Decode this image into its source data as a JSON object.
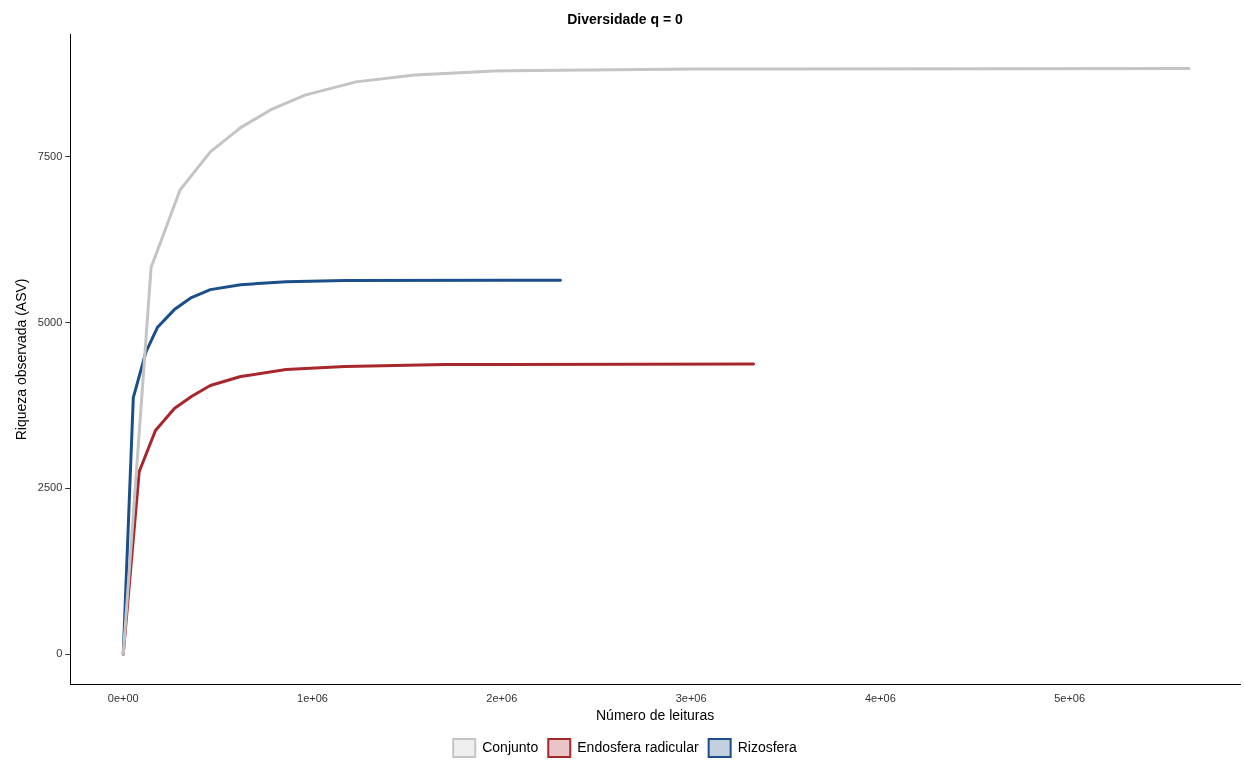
{
  "chart_data": {
    "type": "line",
    "title": "Diversidade q = 0",
    "xlabel": "Número de leituras",
    "ylabel": "Riqueza observada (ASV)",
    "xlim": [
      -280000,
      5900000
    ],
    "ylim": [
      -450,
      9340
    ],
    "xticks": [
      {
        "value": 0,
        "label": "0e+00"
      },
      {
        "value": 1000000,
        "label": "1e+06"
      },
      {
        "value": 2000000,
        "label": "2e+06"
      },
      {
        "value": 3000000,
        "label": "3e+06"
      },
      {
        "value": 4000000,
        "label": "4e+06"
      },
      {
        "value": 5000000,
        "label": "5e+06"
      }
    ],
    "yticks": [
      0,
      2500,
      5000,
      7500
    ],
    "grid": false,
    "legend": "bottom",
    "marker": "none",
    "line_style": "solid",
    "series": [
      {
        "name": "Conjunto",
        "color": "#c4c4c4",
        "x": [
          0,
          147000,
          300000,
          460000,
          620000,
          780000,
          960000,
          1230000,
          1540000,
          1960000,
          3020000,
          5630000
        ],
        "values": [
          0,
          5830,
          7000,
          7575,
          7940,
          8210,
          8430,
          8630,
          8735,
          8795,
          8825,
          8830
        ]
      },
      {
        "name": "Endosfera radicular",
        "color": "#a8272d",
        "x": [
          0,
          84000,
          170000,
          270000,
          360000,
          460000,
          620000,
          860000,
          1170000,
          1700000,
          3330000
        ],
        "values": [
          0,
          2750,
          3373,
          3705,
          3886,
          4051,
          4187,
          4292,
          4337,
          4367,
          4375
        ]
      },
      {
        "name": "Rizosfera",
        "color": "#1b4f8a",
        "x": [
          0,
          53000,
          120000,
          180000,
          270000,
          360000,
          460000,
          620000,
          860000,
          1170000,
          2310000
        ],
        "values": [
          0,
          3870,
          4560,
          4925,
          5196,
          5377,
          5497,
          5572,
          5617,
          5633,
          5640
        ]
      }
    ]
  }
}
